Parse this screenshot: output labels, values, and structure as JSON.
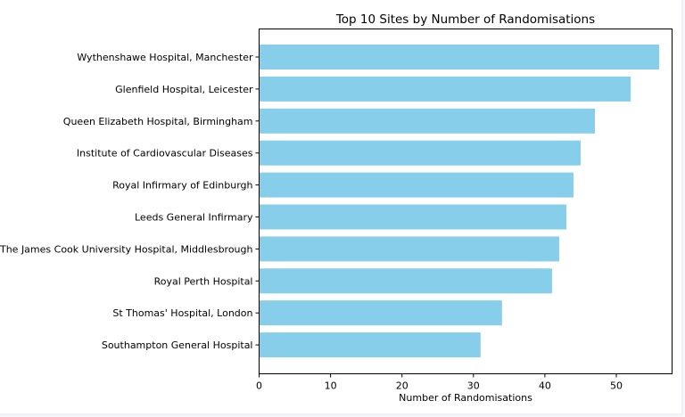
{
  "chart_data": {
    "type": "bar",
    "orientation": "horizontal",
    "title": "Top 10 Sites by Number of Randomisations",
    "xlabel": "Number of Randomisations",
    "ylabel": "",
    "xlim": [
      0,
      57.8
    ],
    "xticks": [
      0,
      10,
      20,
      30,
      40,
      50
    ],
    "grid": false,
    "bar_color": "#87ceeb",
    "categories": [
      "Wythenshawe Hospital, Manchester",
      "Glenfield Hospital, Leicester",
      "Queen Elizabeth Hospital, Birmingham",
      "Institute of Cardiovascular Diseases",
      "Royal Infirmary of Edinburgh",
      "Leeds General Infirmary",
      "The James Cook University Hospital, Middlesbrough",
      "Royal Perth Hospital",
      "St Thomas' Hospital, London",
      "Southampton General Hospital"
    ],
    "values": [
      56,
      52,
      47,
      45,
      44,
      43,
      42,
      41,
      34,
      31
    ]
  }
}
